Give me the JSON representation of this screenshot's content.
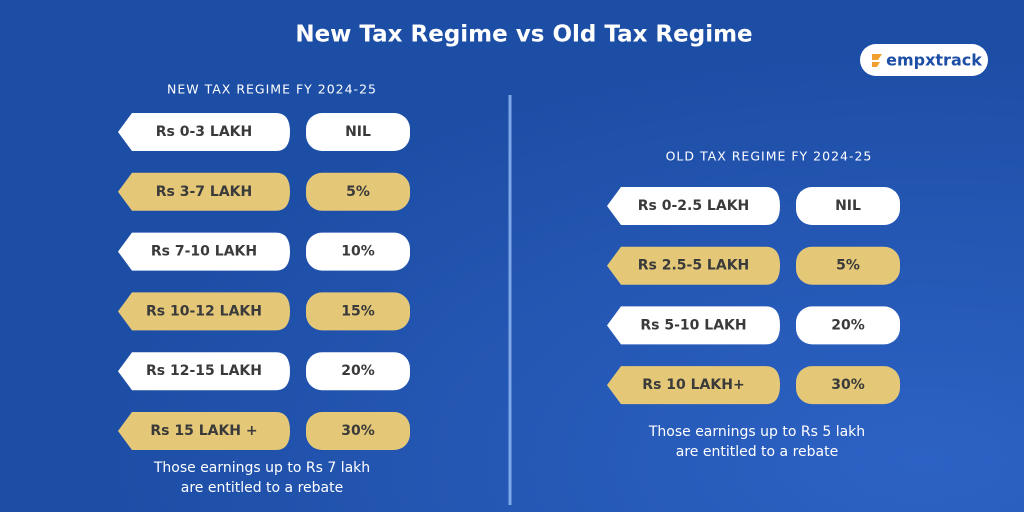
{
  "header": {
    "title": "New Tax Regime vs Old Tax Regime",
    "logo": "empxtrack"
  },
  "left": {
    "title": "NEW TAX REGIME FY 2024-25",
    "rows": [
      [
        "Rs 0-3 LAKH",
        "NIL"
      ],
      [
        "Rs 3-7 LAKH",
        "5%"
      ],
      [
        "Rs 7-10 LAKH",
        "10%"
      ],
      [
        "Rs 10-12 LAKH",
        "15%"
      ],
      [
        "Rs 12-15 LAKH",
        "20%"
      ],
      [
        "Rs 15 LAKH +",
        "30%"
      ]
    ],
    "note": [
      "Those earnings up to Rs 7 lakh",
      "are entitled to a rebate"
    ]
  },
  "right": {
    "title": "OLD TAX REGIME FY 2024-25",
    "rows": [
      [
        "Rs 0-2.5 LAKH",
        "NIL"
      ],
      [
        "Rs 2.5-5 LAKH",
        "5%"
      ],
      [
        "Rs 5-10 LAKH",
        "20%"
      ],
      [
        "Rs 10 LAKH+",
        "30%"
      ]
    ],
    "note": [
      "Those earnings up to Rs 5 lakh",
      "are entitled to a rebate"
    ]
  }
}
